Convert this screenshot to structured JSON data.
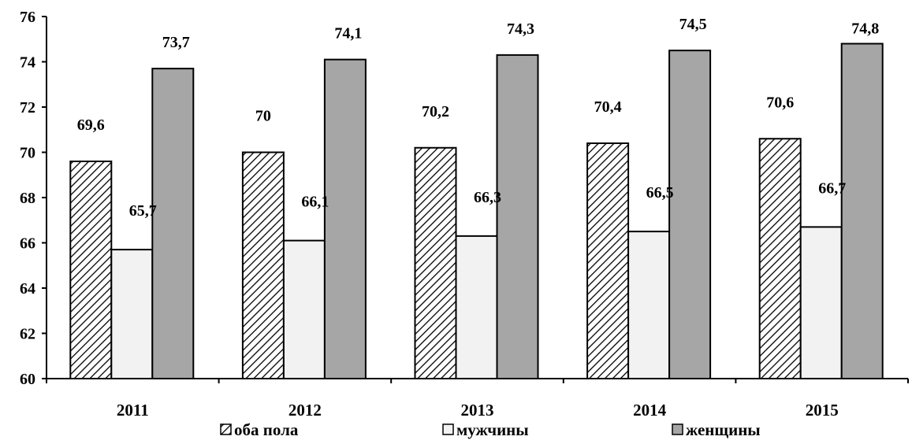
{
  "chart_data": {
    "type": "bar",
    "categories": [
      "2011",
      "2012",
      "2013",
      "2014",
      "2015"
    ],
    "series": [
      {
        "name": "оба пола",
        "values": [
          69.6,
          70,
          70.2,
          70.4,
          70.6
        ],
        "labels": [
          "69,6",
          "70",
          "70,2",
          "70,4",
          "70,6"
        ],
        "fill": "hatch",
        "color": "#000000"
      },
      {
        "name": "мужчины",
        "values": [
          65.7,
          66.1,
          66.3,
          66.5,
          66.7
        ],
        "labels": [
          "65,7",
          "66,1",
          "66,3",
          "66,5",
          "66,7"
        ],
        "fill": "solid",
        "color": "#f2f2f2"
      },
      {
        "name": "женщины",
        "values": [
          73.7,
          74.1,
          74.3,
          74.5,
          74.8
        ],
        "labels": [
          "73,7",
          "74,1",
          "74,3",
          "74,5",
          "74,8"
        ],
        "fill": "solid",
        "color": "#a6a6a6"
      }
    ],
    "ylim": [
      60,
      76
    ],
    "yticks": [
      "60",
      "62",
      "64",
      "66",
      "68",
      "70",
      "72",
      "74",
      "76"
    ],
    "title": "",
    "xlabel": "",
    "ylabel": "",
    "grid": false,
    "legend_position": "bottom"
  }
}
